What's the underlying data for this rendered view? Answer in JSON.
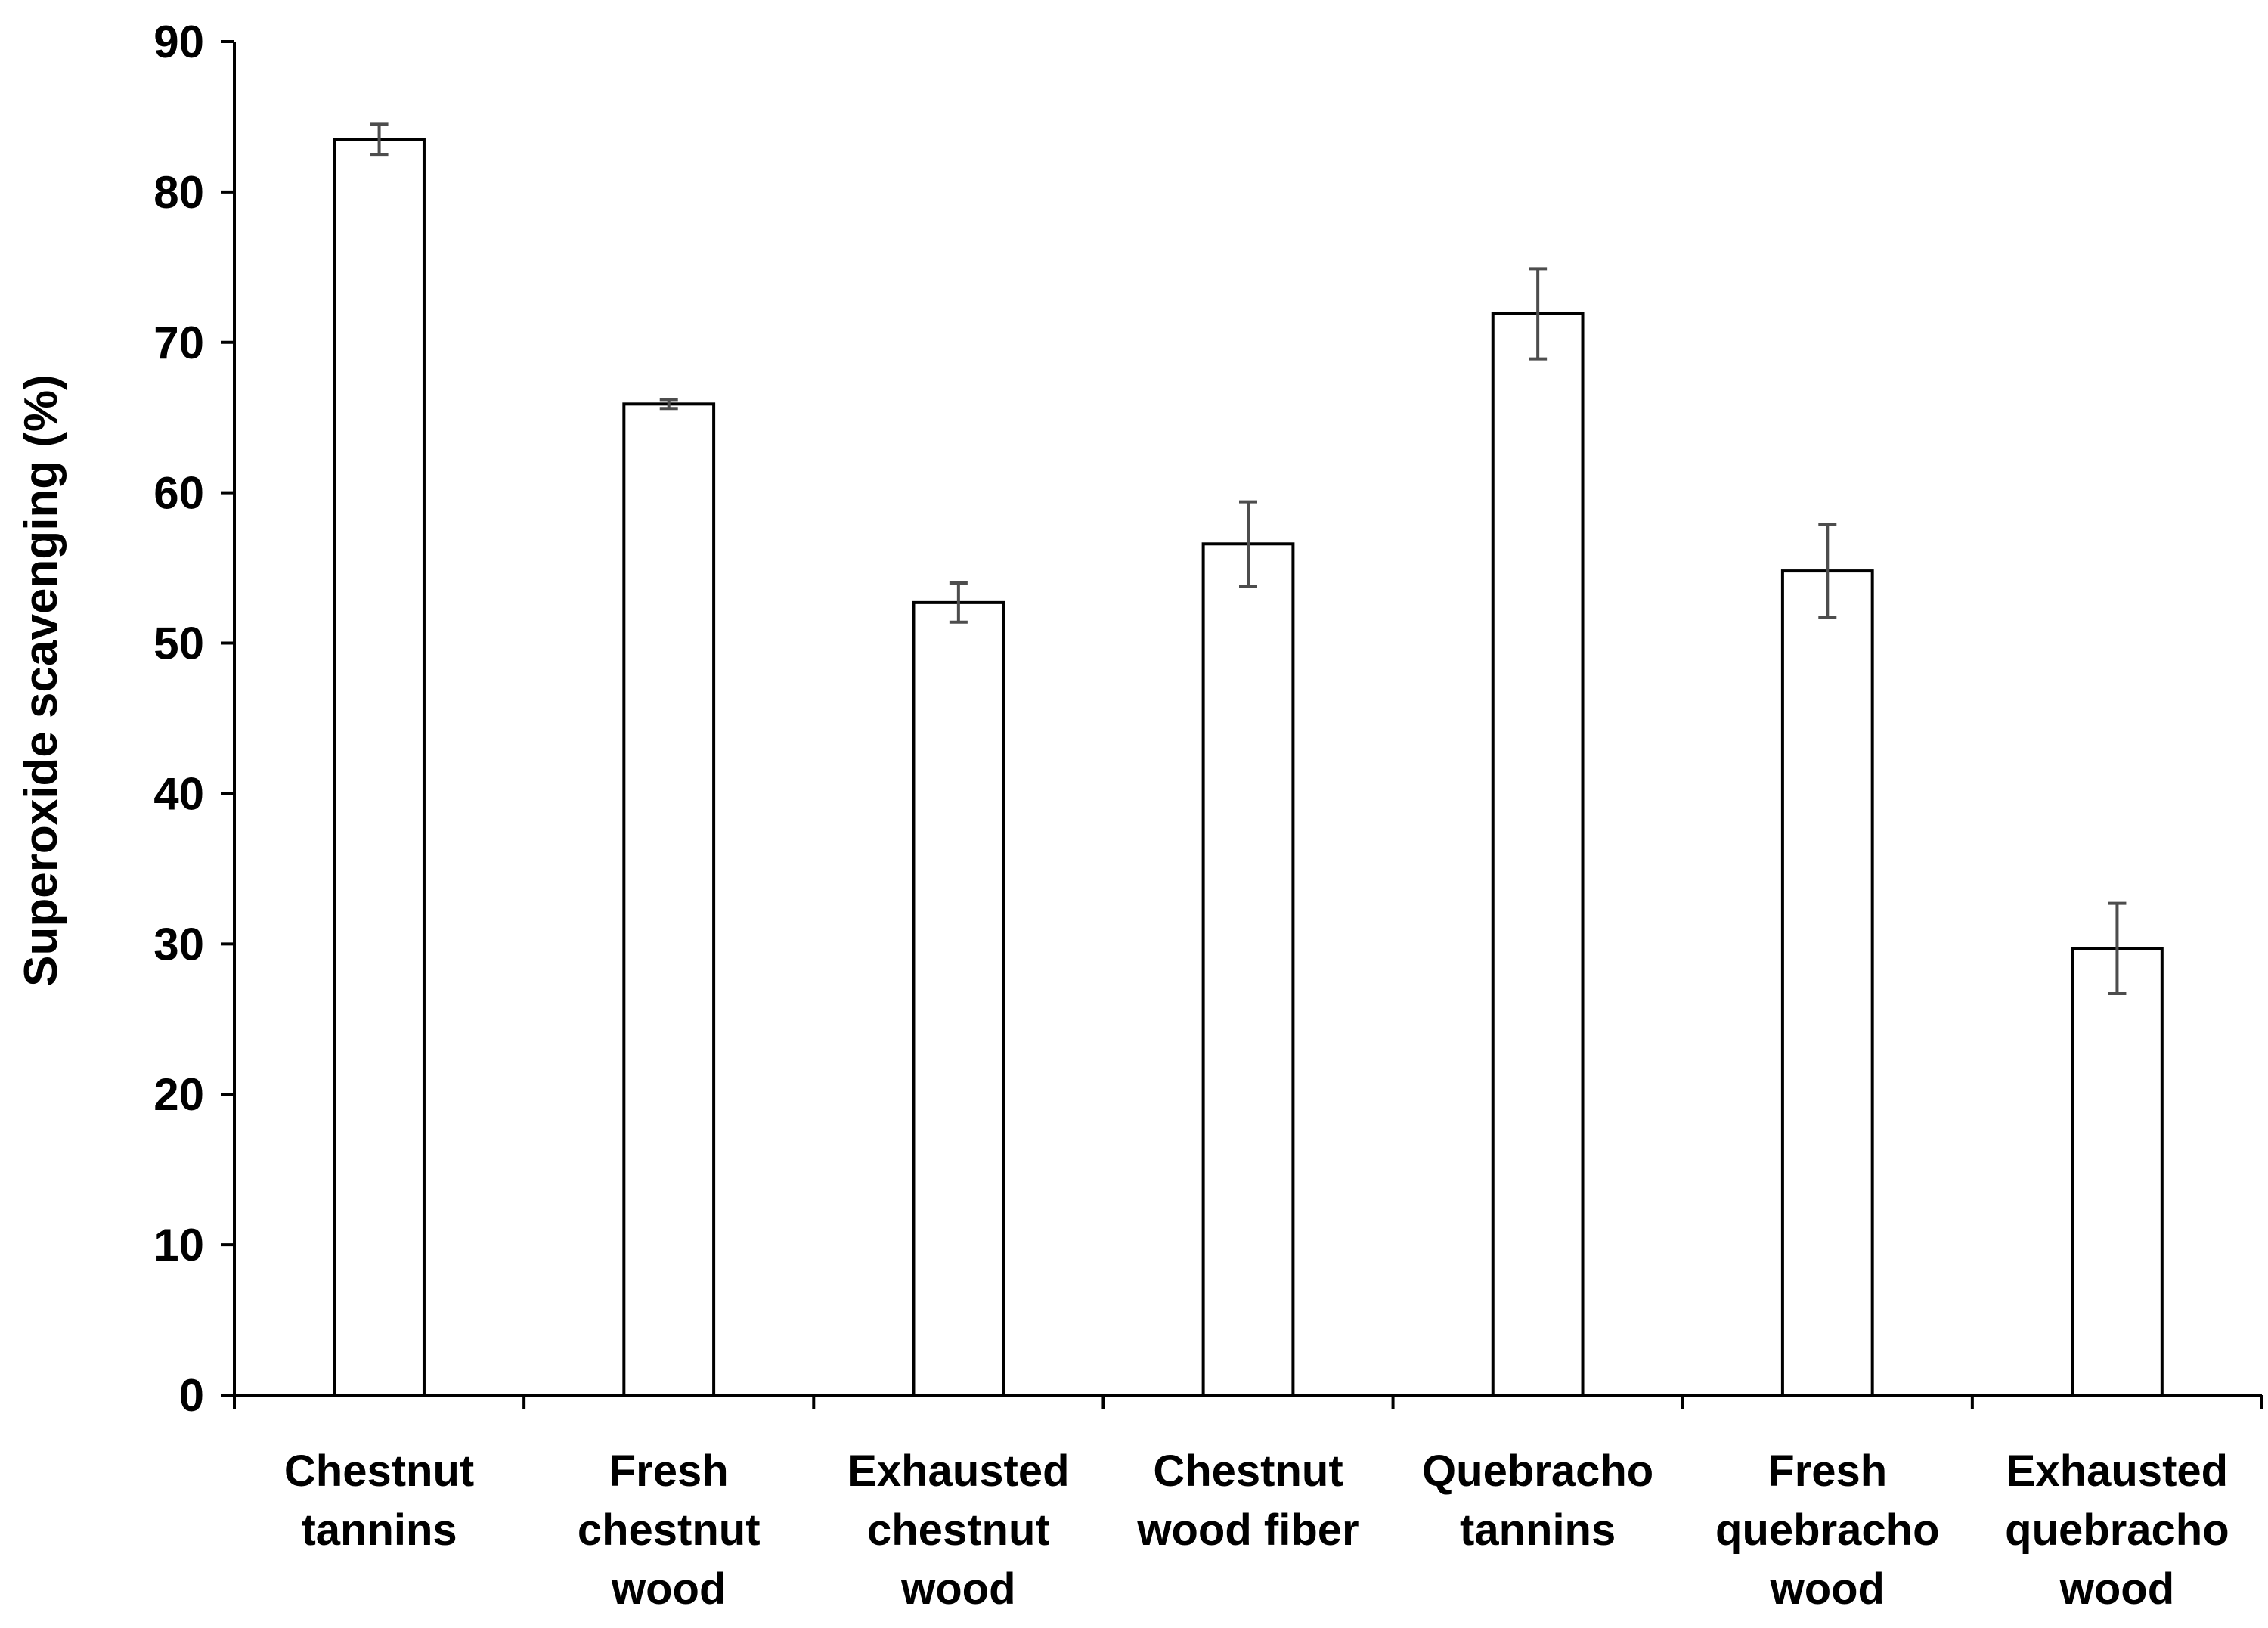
{
  "chart_data": {
    "type": "bar",
    "title": "",
    "xlabel": "",
    "ylabel": "Superoxide scavenging (%)",
    "ylim": [
      0,
      90
    ],
    "yticks": [
      "0",
      "10",
      "20",
      "30",
      "40",
      "50",
      "60",
      "70",
      "80",
      "90"
    ],
    "grid": false,
    "categories": [
      [
        "Chestnut",
        "tannins"
      ],
      [
        "Fresh",
        "chestnut",
        "wood"
      ],
      [
        "Exhausted",
        "chestnut",
        "wood"
      ],
      [
        "Chestnut",
        "wood fiber"
      ],
      [
        "Quebracho",
        "tannins"
      ],
      [
        "Fresh",
        "quebracho",
        "wood"
      ],
      [
        "Exhausted",
        "quebracho",
        "wood"
      ]
    ],
    "values": [
      83.5,
      65.9,
      52.7,
      56.6,
      71.9,
      54.8,
      29.7
    ],
    "errors": [
      1.0,
      0.3,
      1.3,
      2.8,
      3.0,
      3.1,
      3.0
    ],
    "colors": {
      "bar_fill": "#ffffff",
      "bar_stroke": "#000000",
      "error_bar": "#4d4d4d",
      "axis": "#000000"
    }
  }
}
